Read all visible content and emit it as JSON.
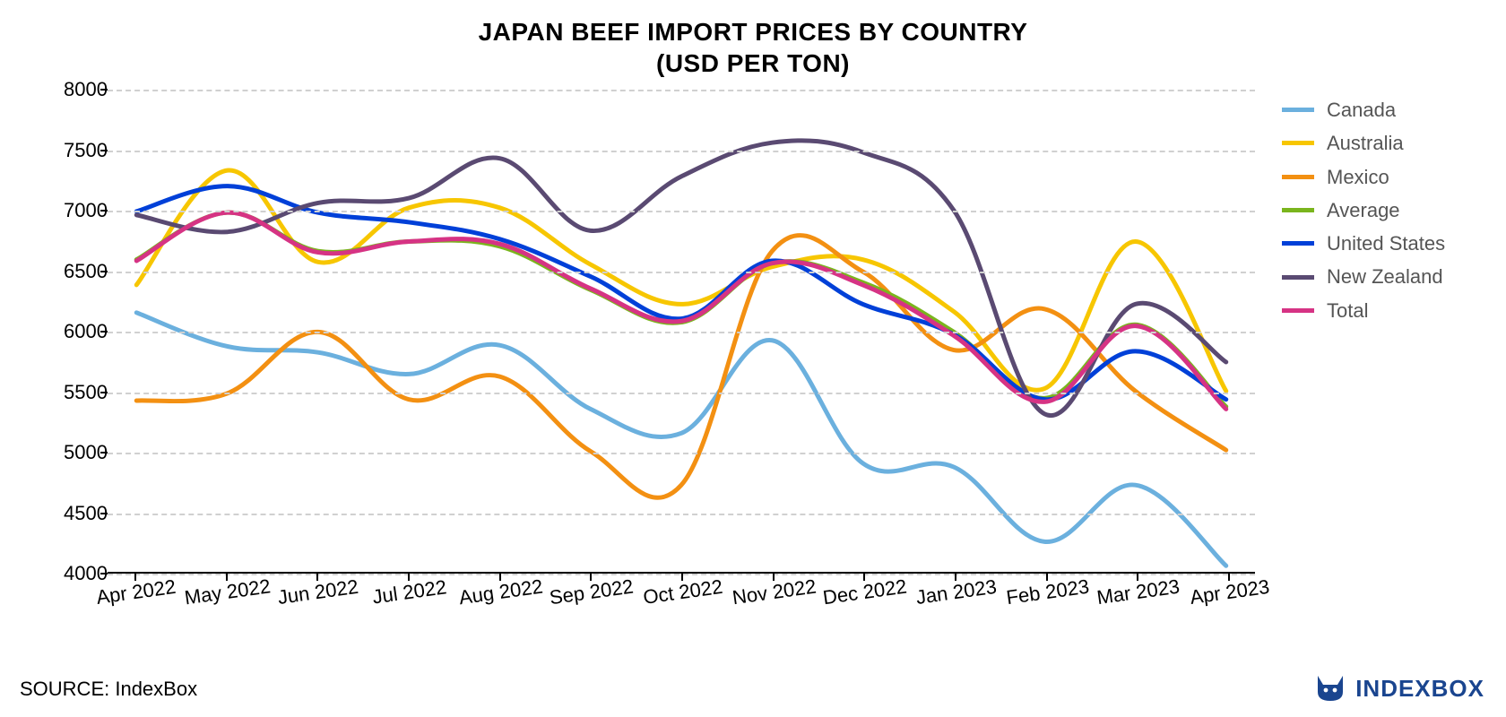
{
  "title_line1": "JAPAN BEEF IMPORT PRICES BY COUNTRY",
  "title_line2": "(USD PER TON)",
  "source_label": "SOURCE: IndexBox",
  "brand_text": "INDEXBOX",
  "chart": {
    "type": "line-smooth",
    "background_color": "#ffffff",
    "grid_color": "#d0d0d0",
    "axis_color": "#000000",
    "line_width": 5,
    "title_fontsize": 28,
    "tick_fontsize": 22,
    "legend_fontsize": 22,
    "x_label_rotation_deg": -8,
    "ylim": [
      4000,
      8000
    ],
    "ytick_step": 500,
    "yticks": [
      4000,
      4500,
      5000,
      5500,
      6000,
      6500,
      7000,
      7500,
      8000
    ],
    "categories": [
      "Apr 2022",
      "May 2022",
      "Jun 2022",
      "Jul 2022",
      "Aug 2022",
      "Sep 2022",
      "Oct 2022",
      "Nov 2022",
      "Dec 2022",
      "Jan 2023",
      "Feb 2023",
      "Mar 2023",
      "Apr 2023"
    ],
    "series": [
      {
        "name": "Canada",
        "color": "#6bb0de",
        "values": [
          6150,
          5870,
          5820,
          5640,
          5880,
          5350,
          5150,
          5920,
          4900,
          4870,
          4250,
          4720,
          4050
        ]
      },
      {
        "name": "Australia",
        "color": "#f7c600",
        "values": [
          6380,
          7330,
          6570,
          7020,
          7020,
          6550,
          6220,
          6530,
          6590,
          6160,
          5520,
          6740,
          5500
        ]
      },
      {
        "name": "Mexico",
        "color": "#f39012",
        "values": [
          5420,
          5480,
          5990,
          5430,
          5620,
          5000,
          4720,
          6660,
          6490,
          5840,
          6180,
          5500,
          5010
        ]
      },
      {
        "name": "Average",
        "color": "#7ab51d",
        "values": [
          6590,
          6980,
          6660,
          6740,
          6700,
          6340,
          6070,
          6560,
          6400,
          5990,
          5440,
          6050,
          5370
        ]
      },
      {
        "name": "United States",
        "color": "#0040d8",
        "values": [
          6990,
          7200,
          6980,
          6900,
          6760,
          6450,
          6100,
          6580,
          6220,
          5970,
          5430,
          5830,
          5430
        ]
      },
      {
        "name": "New Zealand",
        "color": "#5a4a72",
        "values": [
          6960,
          6820,
          7060,
          7100,
          7430,
          6830,
          7280,
          7560,
          7480,
          7000,
          5310,
          6220,
          5740
        ]
      },
      {
        "name": "Total",
        "color": "#d63384",
        "values": [
          6580,
          6980,
          6650,
          6740,
          6720,
          6350,
          6080,
          6560,
          6380,
          5960,
          5410,
          6040,
          5350
        ]
      }
    ]
  },
  "brand_icon_color": "#1a458f"
}
